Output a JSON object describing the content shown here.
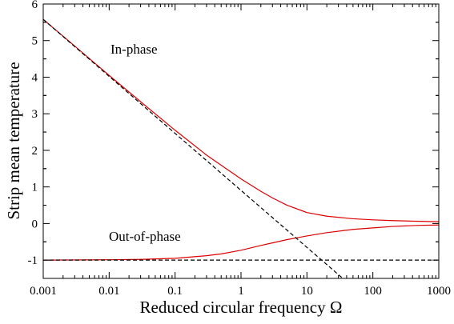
{
  "chart_data": {
    "type": "line",
    "title": "",
    "xlabel": "Reduced  circular frequency  Ω",
    "ylabel": "Strip  mean  temperature",
    "xscale": "log",
    "xlim": [
      0.001,
      1000
    ],
    "ylim": [
      -1.5,
      6
    ],
    "grid": false,
    "x_ticks": [
      0.001,
      0.01,
      0.1,
      1,
      10,
      100,
      1000
    ],
    "x_tick_labels": [
      "0.001",
      "0.01",
      "0.1",
      "1",
      "10",
      "100",
      "1000"
    ],
    "y_ticks": [
      -1,
      0,
      1,
      2,
      3,
      4,
      5,
      6
    ],
    "y_tick_labels": [
      "-1",
      "0",
      "1",
      "2",
      "3",
      "4",
      "5",
      "6"
    ],
    "annotations": [
      {
        "text": "In-phase",
        "x": 0.03,
        "y": 4.7
      },
      {
        "text": "Out-of-phase",
        "x": 0.03,
        "y": -0.35
      }
    ],
    "series": [
      {
        "color": "#dd0000",
        "style": "solid",
        "x": [
          0.001,
          0.003,
          0.01,
          0.03,
          0.1,
          0.3,
          1,
          2,
          3,
          5,
          10,
          20,
          50,
          100,
          200,
          500,
          1000
        ],
        "y": [
          5.58,
          4.85,
          4.05,
          3.33,
          2.55,
          1.87,
          1.22,
          0.88,
          0.7,
          0.5,
          0.3,
          0.2,
          0.13,
          0.1,
          0.08,
          0.06,
          0.05
        ]
      },
      {
        "color": "#dd0000",
        "style": "solid",
        "x": [
          0.001,
          0.01,
          0.03,
          0.1,
          0.3,
          0.5,
          1,
          2,
          3,
          5,
          10,
          20,
          50,
          100,
          200,
          500,
          1000
        ],
        "y": [
          -1.0,
          -0.99,
          -0.98,
          -0.95,
          -0.88,
          -0.83,
          -0.73,
          -0.6,
          -0.53,
          -0.44,
          -0.34,
          -0.25,
          -0.16,
          -0.12,
          -0.08,
          -0.05,
          -0.04
        ]
      },
      {
        "color": "#000000",
        "style": "dashed",
        "x": [
          0.001,
          35
        ],
        "y": [
          5.58,
          -1.5
        ]
      },
      {
        "color": "#000000",
        "style": "dashed",
        "x": [
          0.001,
          1000
        ],
        "y": [
          -1.0,
          -1.0
        ]
      }
    ]
  }
}
